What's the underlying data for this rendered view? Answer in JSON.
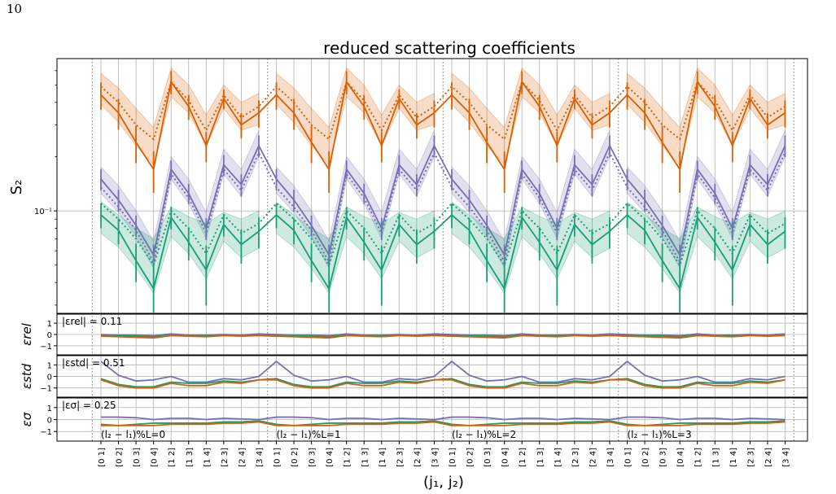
{
  "page_number": "10",
  "chart_data": {
    "type": "line",
    "title": "reduced scattering coefficients",
    "xlabel": "(j₁, j₂)",
    "x_ticklabels": [
      "[0 1]",
      "[0 2]",
      "[0 3]",
      "[0 4]",
      "[1 2]",
      "[1 3]",
      "[1 4]",
      "[2 3]",
      "[2 4]",
      "[3 4]"
    ],
    "x_groups": 4,
    "group_labels": [
      "(l₂ − l₁)%L=0",
      "(l₂ − l₁)%L=1",
      "(l₂ − l₁)%L=2",
      "(l₂ − l₁)%L=3"
    ],
    "main": {
      "ylabel": "S₂",
      "yscale": "log",
      "ylim": [
        0.027,
        0.7
      ],
      "ytick_labels": [
        {
          "value": 0.1,
          "label": "10⁻¹"
        }
      ],
      "series": [
        {
          "name": "orange",
          "color": "#d95f02",
          "solid": [
            0.44,
            0.35,
            0.24,
            0.17,
            0.52,
            0.38,
            0.23,
            0.42,
            0.3,
            0.35
          ],
          "dotted": [
            0.49,
            0.4,
            0.3,
            0.25,
            0.52,
            0.41,
            0.28,
            0.44,
            0.33,
            0.38
          ],
          "band_low": [
            0.39,
            0.31,
            0.23,
            0.18,
            0.43,
            0.35,
            0.23,
            0.37,
            0.28,
            0.3
          ],
          "band_high": [
            0.58,
            0.48,
            0.37,
            0.29,
            0.62,
            0.5,
            0.34,
            0.5,
            0.4,
            0.45
          ]
        },
        {
          "name": "purple",
          "color": "#7570b3",
          "solid": [
            0.15,
            0.115,
            0.083,
            0.057,
            0.17,
            0.125,
            0.08,
            0.18,
            0.14,
            0.23
          ],
          "dotted": [
            0.135,
            0.105,
            0.078,
            0.052,
            0.16,
            0.118,
            0.075,
            0.17,
            0.13,
            0.21
          ],
          "band_low": [
            0.125,
            0.098,
            0.072,
            0.048,
            0.15,
            0.11,
            0.07,
            0.16,
            0.12,
            0.2
          ],
          "band_high": [
            0.175,
            0.138,
            0.1,
            0.068,
            0.2,
            0.15,
            0.098,
            0.22,
            0.17,
            0.28
          ]
        },
        {
          "name": "green",
          "color": "#1b9e77",
          "solid": [
            0.095,
            0.078,
            0.053,
            0.037,
            0.092,
            0.067,
            0.047,
            0.084,
            0.065,
            0.077
          ],
          "dotted": [
            0.11,
            0.09,
            0.07,
            0.05,
            0.1,
            0.08,
            0.058,
            0.095,
            0.075,
            0.085
          ],
          "band_low": [
            0.075,
            0.063,
            0.048,
            0.035,
            0.072,
            0.058,
            0.042,
            0.068,
            0.055,
            0.062
          ],
          "band_high": [
            0.112,
            0.095,
            0.08,
            0.07,
            0.105,
            0.093,
            0.085,
            0.098,
            0.09,
            0.1
          ]
        }
      ]
    },
    "subplots": [
      {
        "ylabel": "εrel",
        "annotation": "|εrel| = 0.11",
        "yticks": [
          "1",
          "0",
          "−1"
        ],
        "ylim": [
          -1.8,
          1.8
        ],
        "series": [
          {
            "color": "#7570b3",
            "values": [
              0.0,
              -0.05,
              -0.05,
              -0.1,
              0.05,
              -0.05,
              -0.05,
              0.0,
              -0.05,
              0.05
            ]
          },
          {
            "color": "#1b9e77",
            "values": [
              -0.1,
              -0.1,
              -0.15,
              -0.2,
              -0.05,
              -0.1,
              -0.1,
              -0.05,
              -0.1,
              -0.05
            ]
          },
          {
            "color": "#d95f02",
            "values": [
              -0.15,
              -0.2,
              -0.25,
              -0.3,
              -0.1,
              -0.15,
              -0.2,
              -0.1,
              -0.15,
              -0.1
            ]
          }
        ],
        "first_group_override": {
          "#7570b3": 0.3
        }
      },
      {
        "ylabel": "εstd",
        "annotation": "|εstd| = 0.51",
        "yticks": [
          "1",
          "0",
          "−1"
        ],
        "ylim": [
          -1.8,
          1.8
        ],
        "series": [
          {
            "color": "#7570b3",
            "values": [
              1.3,
              0.1,
              -0.4,
              -0.3,
              0.0,
              -0.5,
              -0.5,
              -0.2,
              -0.3,
              0.0
            ]
          },
          {
            "color": "#1b9e77",
            "values": [
              -0.2,
              -0.7,
              -0.9,
              -0.9,
              -0.5,
              -0.6,
              -0.6,
              -0.4,
              -0.5,
              -0.3
            ]
          },
          {
            "color": "#d95f02",
            "values": [
              -0.3,
              -0.8,
              -1.0,
              -1.0,
              -0.6,
              -0.8,
              -0.8,
              -0.5,
              -0.6,
              -0.3
            ]
          }
        ]
      },
      {
        "ylabel": "εσ",
        "annotation": "|εσ| = 0.25",
        "yticks": [
          "1",
          "0",
          "−1"
        ],
        "ylim": [
          -1.8,
          1.8
        ],
        "series": [
          {
            "color": "#7570b3",
            "values": [
              0.2,
              0.2,
              0.15,
              0.0,
              0.1,
              0.1,
              0.0,
              0.1,
              0.05,
              0.0
            ]
          },
          {
            "color": "#1b9e77",
            "values": [
              -0.4,
              -0.5,
              -0.4,
              -0.3,
              -0.3,
              -0.3,
              -0.3,
              -0.2,
              -0.2,
              -0.1
            ]
          },
          {
            "color": "#d95f02",
            "values": [
              -0.5,
              -0.5,
              -0.5,
              -0.5,
              -0.4,
              -0.4,
              -0.4,
              -0.3,
              -0.3,
              -0.2
            ]
          }
        ]
      }
    ]
  }
}
